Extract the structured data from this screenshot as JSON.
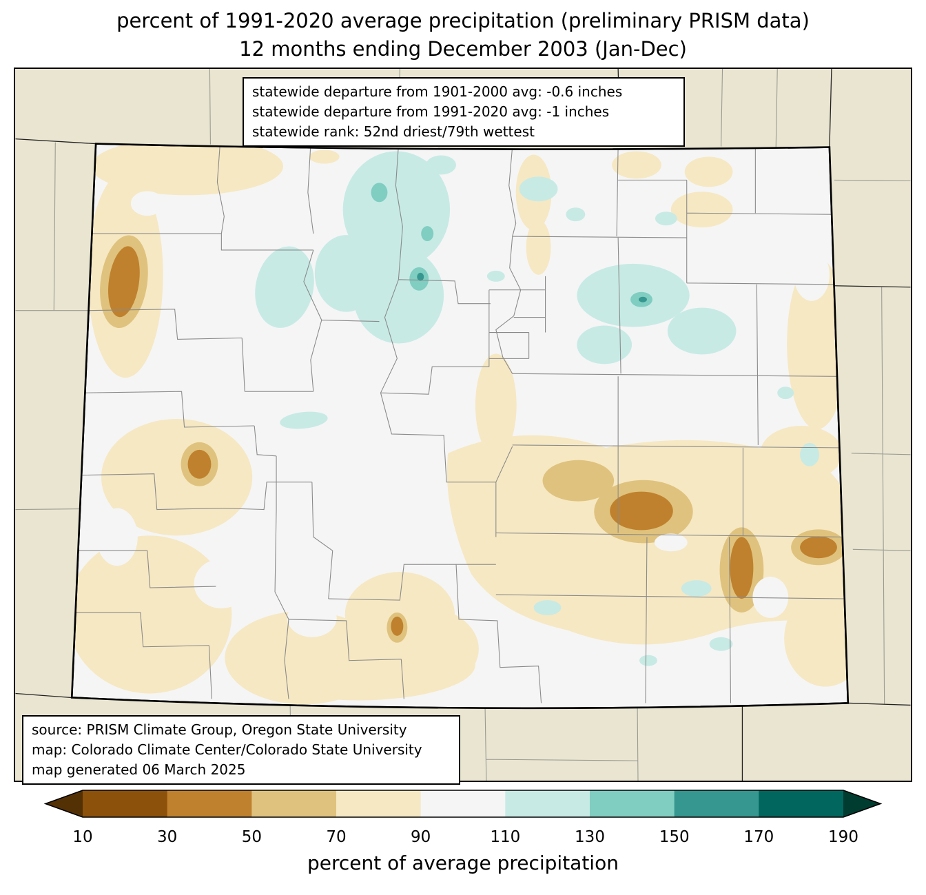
{
  "title": {
    "line1": "percent of 1991-2020 average precipitation (preliminary PRISM data)",
    "line2": "12 months ending December 2003 (Jan-Dec)"
  },
  "stats_box": {
    "line1": "statewide departure from 1901-2000 avg: -0.6 inches",
    "line2": "statewide departure from 1991-2020 avg: -1 inches",
    "line3": "statewide rank: 52nd driest/79th wettest"
  },
  "source_box": {
    "line1": "source: PRISM Climate Group, Oregon State University",
    "line2": "map: Colorado Climate Center/Colorado State University",
    "line3": "map generated 06 March 2025"
  },
  "colorbar": {
    "label": "percent of average precipitation",
    "ticks": [
      "10",
      "30",
      "50",
      "70",
      "90",
      "110",
      "130",
      "150",
      "170",
      "190"
    ],
    "colors": [
      "#543005",
      "#8c510a",
      "#bf812d",
      "#dfc27d",
      "#f6e8c3",
      "#f5f5f5",
      "#c7eae5",
      "#80cdc1",
      "#35978f",
      "#01665e",
      "#003c30"
    ]
  },
  "map": {
    "region": "Colorado",
    "outside_state_color": "#e9e5d1",
    "state_base_color": "#f5f5f5",
    "county_line_color": "#8a8a8a",
    "state_border_color": "#000000"
  }
}
